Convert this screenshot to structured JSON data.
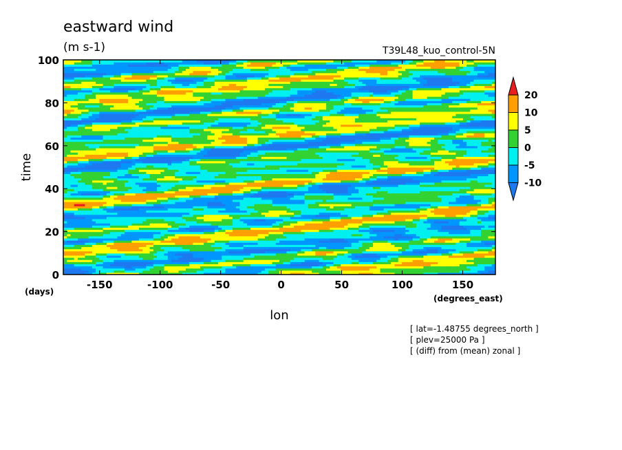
{
  "chart_data": {
    "type": "heatmap",
    "title": "eastward wind",
    "units": "(m s-1)",
    "run_label": "T39L48_kuo_control-5N",
    "xlabel": "lon",
    "ylabel": "time",
    "x_unit_label": "(degrees_east)",
    "y_unit_label": "(days)",
    "xlim": [
      -180,
      177
    ],
    "ylim": [
      0,
      100
    ],
    "x_ticks": [
      "-150",
      "-100",
      "-50",
      "0",
      "50",
      "100",
      "150"
    ],
    "x_tick_values": [
      -150,
      -100,
      -50,
      0,
      50,
      100,
      150
    ],
    "y_ticks": [
      "0",
      "20",
      "40",
      "60",
      "80",
      "100"
    ],
    "y_tick_values": [
      0,
      20,
      40,
      60,
      80,
      100
    ],
    "colorbar": {
      "levels": [
        -10,
        -5,
        0,
        5,
        10,
        20
      ],
      "labels": [
        "-10",
        "-5",
        "0",
        "5",
        "10",
        "20"
      ],
      "colors": [
        "#1e78f0",
        "#0096ff",
        "#00f0f0",
        "#32d232",
        "#ffff00",
        "#ffa000",
        "#e61e1e"
      ],
      "extend": "both"
    },
    "notes": [
      "[ lat=-1.48755 degrees_north ]",
      "[ plev=25000 Pa ]",
      "[ (diff) from (mean) zonal ]"
    ]
  }
}
